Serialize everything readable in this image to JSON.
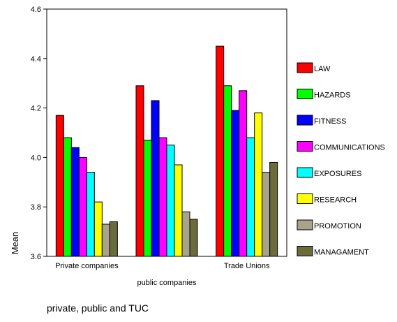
{
  "chart_data": {
    "type": "bar",
    "title": "",
    "xlabel": "private, public and TUC",
    "ylabel": "Mean",
    "ylim": [
      3.6,
      4.6
    ],
    "yticks": [
      "3.6",
      "3.8",
      "4.0",
      "4.2",
      "4.4",
      "4.6"
    ],
    "categories": [
      "Private companies",
      "public companies",
      "Trade Unions"
    ],
    "grid": false,
    "legend_position": "right",
    "series": [
      {
        "name": "LAW",
        "color": "#ff0000",
        "values": [
          4.17,
          4.29,
          4.45
        ]
      },
      {
        "name": "HAZARDS",
        "color": "#00ff00",
        "values": [
          4.08,
          4.07,
          4.29
        ]
      },
      {
        "name": "FITNESS",
        "color": "#0000ff",
        "values": [
          4.04,
          4.23,
          4.19
        ]
      },
      {
        "name": "COMMUNICATIONS",
        "color": "#ff00ff",
        "values": [
          4.0,
          4.08,
          4.27
        ]
      },
      {
        "name": "EXPOSURES",
        "color": "#00ffff",
        "values": [
          3.94,
          4.05,
          4.08
        ]
      },
      {
        "name": "RESEARCH",
        "color": "#ffff00",
        "values": [
          3.82,
          3.97,
          4.18
        ]
      },
      {
        "name": "PROMOTION",
        "color": "#a8a48a",
        "values": [
          3.73,
          3.78,
          3.94
        ]
      },
      {
        "name": "MANAGAMENT",
        "color": "#6b6b3c",
        "values": [
          3.74,
          3.75,
          3.98
        ]
      }
    ]
  }
}
